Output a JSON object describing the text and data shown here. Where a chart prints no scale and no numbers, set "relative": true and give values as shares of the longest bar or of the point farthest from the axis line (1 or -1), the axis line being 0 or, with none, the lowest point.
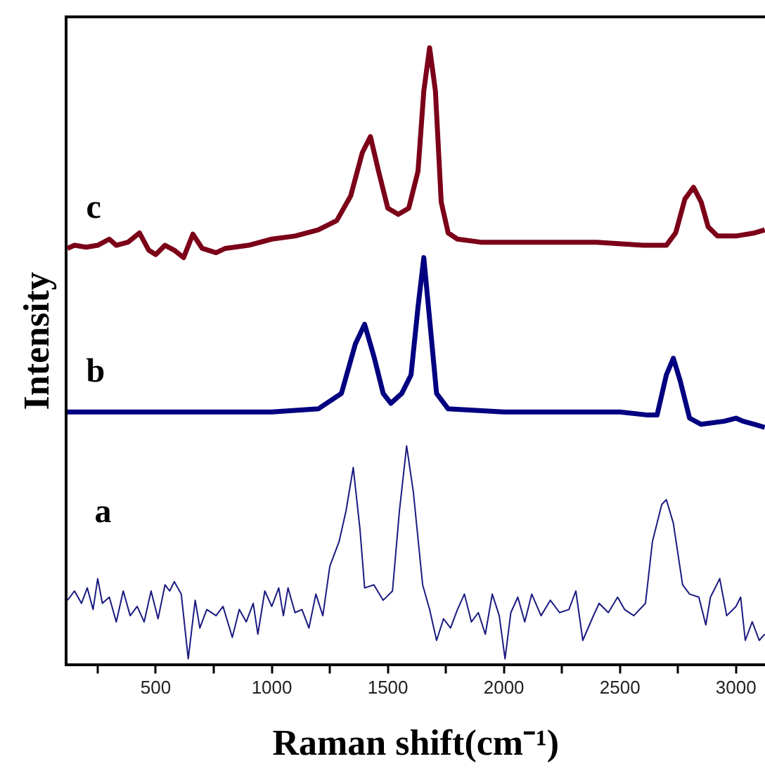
{
  "chart_data": {
    "type": "line",
    "relative": true,
    "xlabel": "Raman shift(cm⁻¹)",
    "ylabel": "Intensity",
    "legend": false,
    "grid": false,
    "marker": "none",
    "xlim": [
      115,
      3125
    ],
    "xticks": [
      {
        "value": 250,
        "label": null
      },
      500,
      {
        "value": 750,
        "label": null
      },
      1000,
      {
        "value": 1250,
        "label": null
      },
      1500,
      {
        "value": 1750,
        "label": null
      },
      2000,
      {
        "value": 2250,
        "label": null
      },
      2500,
      {
        "value": 2750,
        "label": null
      },
      3000
    ],
    "series": [
      {
        "name": "a",
        "color": "#1a1a80",
        "x": [
          120,
          150,
          180,
          205,
          230,
          250,
          270,
          300,
          330,
          360,
          390,
          420,
          450,
          480,
          510,
          540,
          560,
          580,
          610,
          640,
          670,
          690,
          720,
          760,
          790,
          830,
          860,
          890,
          920,
          940,
          970,
          1000,
          1030,
          1050,
          1070,
          1100,
          1130,
          1160,
          1190,
          1220,
          1250,
          1290,
          1320,
          1351,
          1380,
          1400,
          1440,
          1480,
          1520,
          1550,
          1581,
          1610,
          1650,
          1680,
          1710,
          1740,
          1770,
          1800,
          1830,
          1860,
          1890,
          1920,
          1950,
          1980,
          2005,
          2030,
          2060,
          2090,
          2120,
          2160,
          2200,
          2240,
          2280,
          2310,
          2340,
          2380,
          2410,
          2450,
          2490,
          2520,
          2560,
          2610,
          2640,
          2680,
          2700,
          2730,
          2770,
          2800,
          2840,
          2870,
          2890,
          2930,
          2960,
          3000,
          3020,
          3040,
          3070,
          3100,
          3124
        ],
        "values": [
          0.105,
          0.12,
          0.1,
          0.125,
          0.09,
          0.14,
          0.1,
          0.11,
          0.07,
          0.12,
          0.08,
          0.095,
          0.07,
          0.12,
          0.075,
          0.13,
          0.12,
          0.135,
          0.115,
          0.01,
          0.105,
          0.06,
          0.09,
          0.08,
          0.095,
          0.045,
          0.09,
          0.07,
          0.1,
          0.05,
          0.12,
          0.095,
          0.125,
          0.08,
          0.125,
          0.085,
          0.09,
          0.06,
          0.115,
          0.08,
          0.16,
          0.2,
          0.25,
          0.32,
          0.22,
          0.125,
          0.13,
          0.105,
          0.12,
          0.25,
          0.355,
          0.28,
          0.13,
          0.09,
          0.04,
          0.075,
          0.06,
          0.09,
          0.115,
          0.07,
          0.085,
          0.05,
          0.115,
          0.08,
          0.01,
          0.085,
          0.11,
          0.07,
          0.115,
          0.08,
          0.105,
          0.085,
          0.09,
          0.12,
          0.04,
          0.075,
          0.1,
          0.085,
          0.11,
          0.09,
          0.08,
          0.1,
          0.2,
          0.26,
          0.268,
          0.23,
          0.13,
          0.115,
          0.11,
          0.065,
          0.11,
          0.14,
          0.08,
          0.095,
          0.11,
          0.04,
          0.07,
          0.04,
          0.05
        ]
      },
      {
        "name": "b",
        "color": "#000080",
        "x": [
          120,
          500,
          1000,
          1200,
          1300,
          1360,
          1400,
          1440,
          1480,
          1513,
          1560,
          1600,
          1630,
          1655,
          1680,
          1710,
          1760,
          2000,
          2500,
          2620,
          2660,
          2700,
          2730,
          2760,
          2800,
          2850,
          2950,
          3000,
          3030,
          3080,
          3124
        ],
        "values": [
          0.41,
          0.41,
          0.41,
          0.415,
          0.44,
          0.52,
          0.552,
          0.5,
          0.44,
          0.424,
          0.44,
          0.47,
          0.58,
          0.66,
          0.56,
          0.44,
          0.415,
          0.41,
          0.41,
          0.405,
          0.405,
          0.47,
          0.497,
          0.46,
          0.4,
          0.39,
          0.395,
          0.4,
          0.395,
          0.39,
          0.385
        ]
      },
      {
        "name": "c",
        "color": "#7b0018",
        "x": [
          120,
          150,
          200,
          250,
          300,
          330,
          380,
          430,
          470,
          500,
          540,
          580,
          620,
          660,
          700,
          760,
          800,
          900,
          1000,
          1100,
          1200,
          1280,
          1340,
          1390,
          1425,
          1460,
          1500,
          1545,
          1590,
          1630,
          1655,
          1680,
          1705,
          1730,
          1760,
          1800,
          1900,
          2000,
          2200,
          2400,
          2600,
          2700,
          2740,
          2780,
          2817,
          2850,
          2880,
          2920,
          3000,
          3080,
          3124
        ],
        "values": [
          0.675,
          0.68,
          0.677,
          0.68,
          0.69,
          0.68,
          0.685,
          0.7,
          0.672,
          0.665,
          0.68,
          0.672,
          0.66,
          0.698,
          0.675,
          0.668,
          0.675,
          0.68,
          0.69,
          0.695,
          0.705,
          0.72,
          0.76,
          0.83,
          0.856,
          0.8,
          0.74,
          0.73,
          0.74,
          0.8,
          0.93,
          1.0,
          0.93,
          0.75,
          0.7,
          0.69,
          0.685,
          0.685,
          0.685,
          0.685,
          0.68,
          0.68,
          0.7,
          0.755,
          0.774,
          0.75,
          0.71,
          0.695,
          0.695,
          0.7,
          0.705
        ]
      }
    ]
  }
}
